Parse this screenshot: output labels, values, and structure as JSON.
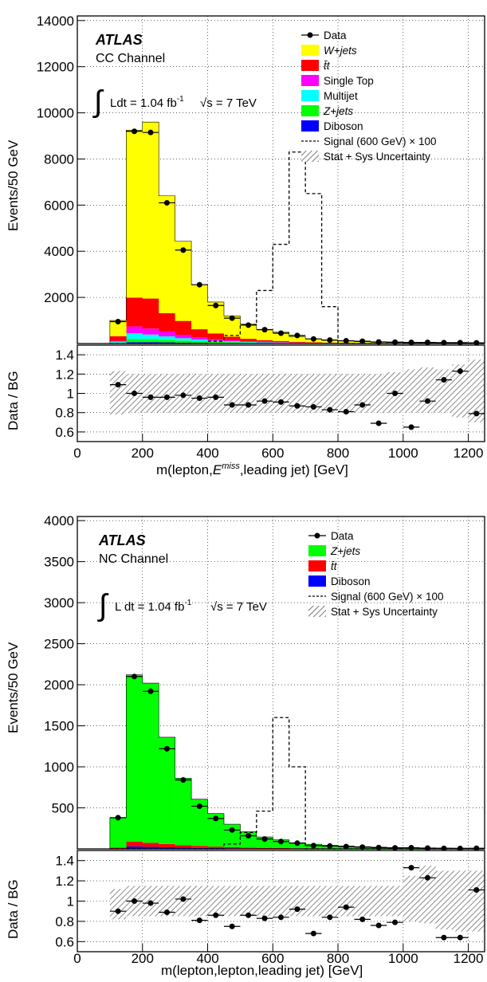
{
  "chart_data": [
    {
      "type": "bar",
      "panel": "top",
      "experiment": "ATLAS",
      "channel": "CC Channel",
      "lumi_prefix": "Ldt = 1.04 fb",
      "lumi_exp": "-1",
      "energy": "√s = 7 TeV",
      "ylabel": "Events/50 GeV",
      "ratio_ylabel": "Data / BG",
      "xlabel_pre": "m(lepton,",
      "xlabel_var": "E",
      "xlabel_sup": "miss",
      "xlabel_post": ",leading jet) [GeV]",
      "xlim": [
        0,
        1250
      ],
      "ylim": [
        0,
        14200
      ],
      "ratio_ylim": [
        0.5,
        1.5
      ],
      "x_ticks": [
        "0",
        "200",
        "400",
        "600",
        "800",
        "1000",
        "1200"
      ],
      "y_ticks": [
        "2000",
        "4000",
        "6000",
        "8000",
        "10000",
        "12000",
        "14000"
      ],
      "ratio_ticks": [
        "0.6",
        "0.8",
        "1",
        "1.2",
        "1.4"
      ],
      "grid": true,
      "legend_position": "top-right",
      "legend": [
        {
          "label": "Data",
          "style": "marker"
        },
        {
          "label": "W+jets",
          "style": "fill",
          "color": "#ffff00"
        },
        {
          "label": "t̄t",
          "style": "fill",
          "color": "#ff0000"
        },
        {
          "label": "Single Top",
          "style": "fill",
          "color": "#ff00ff"
        },
        {
          "label": "Multijet",
          "style": "fill",
          "color": "#00ffff"
        },
        {
          "label": "Z+jets",
          "style": "fill",
          "color": "#00ff00"
        },
        {
          "label": "Diboson",
          "style": "fill",
          "color": "#0000ff"
        },
        {
          "label": "Signal (600 GeV) × 100",
          "style": "dashed"
        },
        {
          "label": "Stat + Sys Uncertainty",
          "style": "hatch"
        }
      ],
      "bin_edges": [
        100,
        150,
        200,
        250,
        300,
        350,
        400,
        450,
        500,
        550,
        600,
        650,
        700,
        750,
        800,
        850,
        900,
        950,
        1000,
        1050,
        1100,
        1150,
        1200,
        1250
      ],
      "stack": [
        {
          "name": "Diboson",
          "color": "#0000ff",
          "values": [
            10,
            60,
            60,
            50,
            40,
            30,
            20,
            15,
            10,
            8,
            6,
            5,
            4,
            3,
            3,
            2,
            2,
            2,
            1,
            1,
            1,
            1,
            1
          ]
        },
        {
          "name": "Z+jets",
          "color": "#00ff00",
          "values": [
            30,
            130,
            130,
            110,
            90,
            70,
            50,
            40,
            30,
            25,
            20,
            15,
            10,
            8,
            6,
            5,
            4,
            3,
            3,
            2,
            2,
            2,
            2
          ]
        },
        {
          "name": "Multijet",
          "color": "#00ffff",
          "values": [
            40,
            250,
            200,
            150,
            100,
            70,
            50,
            40,
            30,
            20,
            15,
            10,
            8,
            6,
            5,
            4,
            3,
            3,
            2,
            2,
            2,
            2,
            2
          ]
        },
        {
          "name": "Single Top",
          "color": "#ff00ff",
          "values": [
            40,
            300,
            260,
            210,
            150,
            100,
            70,
            50,
            35,
            25,
            20,
            15,
            10,
            8,
            6,
            5,
            4,
            3,
            2,
            2,
            2,
            2,
            2
          ]
        },
        {
          "name": "tt",
          "color": "#ff0000",
          "values": [
            200,
            1250,
            1300,
            800,
            600,
            350,
            250,
            150,
            100,
            70,
            50,
            30,
            20,
            15,
            10,
            8,
            6,
            5,
            4,
            3,
            3,
            2,
            2
          ]
        },
        {
          "name": "W+jets",
          "color": "#ffff00",
          "values": [
            680,
            7260,
            7650,
            5080,
            3460,
            1930,
            1360,
            900,
            640,
            470,
            380,
            230,
            150,
            100,
            80,
            60,
            40,
            30,
            25,
            20,
            15,
            10,
            10
          ]
        }
      ],
      "signal": [
        0,
        0,
        0,
        0,
        0,
        0,
        100,
        350,
        800,
        2300,
        4300,
        8300,
        6500,
        1600,
        0,
        0,
        0,
        0,
        0,
        0,
        0,
        0,
        0,
        0
      ],
      "data_points": [
        {
          "x": 125,
          "y": 950
        },
        {
          "x": 175,
          "y": 9200
        },
        {
          "x": 225,
          "y": 9150
        },
        {
          "x": 275,
          "y": 6100
        },
        {
          "x": 325,
          "y": 4050
        },
        {
          "x": 375,
          "y": 2550
        },
        {
          "x": 425,
          "y": 1650
        },
        {
          "x": 475,
          "y": 1100
        },
        {
          "x": 525,
          "y": 800
        },
        {
          "x": 575,
          "y": 600
        },
        {
          "x": 625,
          "y": 450
        },
        {
          "x": 675,
          "y": 350
        },
        {
          "x": 725,
          "y": 200
        },
        {
          "x": 775,
          "y": 150
        },
        {
          "x": 825,
          "y": 120
        },
        {
          "x": 875,
          "y": 100
        },
        {
          "x": 925,
          "y": 70
        },
        {
          "x": 975,
          "y": 60
        },
        {
          "x": 1025,
          "y": 50
        },
        {
          "x": 1075,
          "y": 50
        },
        {
          "x": 1125,
          "y": 40
        },
        {
          "x": 1175,
          "y": 40
        },
        {
          "x": 1225,
          "y": 30
        }
      ],
      "ratio_points": [
        {
          "x": 125,
          "y": 1.09
        },
        {
          "x": 175,
          "y": 1.0
        },
        {
          "x": 225,
          "y": 0.96
        },
        {
          "x": 275,
          "y": 0.96
        },
        {
          "x": 325,
          "y": 0.98
        },
        {
          "x": 375,
          "y": 0.95
        },
        {
          "x": 425,
          "y": 0.96
        },
        {
          "x": 475,
          "y": 0.88
        },
        {
          "x": 525,
          "y": 0.88
        },
        {
          "x": 575,
          "y": 0.92
        },
        {
          "x": 625,
          "y": 0.91
        },
        {
          "x": 675,
          "y": 0.87
        },
        {
          "x": 725,
          "y": 0.86
        },
        {
          "x": 775,
          "y": 0.83
        },
        {
          "x": 825,
          "y": 0.81
        },
        {
          "x": 875,
          "y": 0.88
        },
        {
          "x": 925,
          "y": 0.69
        },
        {
          "x": 975,
          "y": 1.0
        },
        {
          "x": 1025,
          "y": 0.65
        },
        {
          "x": 1075,
          "y": 0.92
        },
        {
          "x": 1125,
          "y": 1.14
        },
        {
          "x": 1175,
          "y": 1.23
        },
        {
          "x": 1225,
          "y": 0.79
        }
      ],
      "uncertainty": {
        "x_range": [
          100,
          1250
        ],
        "lower": [
          0.78,
          0.8,
          0.8,
          0.8,
          0.8,
          0.8,
          0.8,
          0.8,
          0.8,
          0.8,
          0.8,
          0.8,
          0.8,
          0.8,
          0.8,
          0.8,
          0.8,
          0.8,
          0.8,
          0.8,
          0.8,
          0.75,
          0.7
        ],
        "upper": [
          1.23,
          1.2,
          1.2,
          1.2,
          1.2,
          1.2,
          1.2,
          1.2,
          1.2,
          1.2,
          1.2,
          1.2,
          1.2,
          1.2,
          1.2,
          1.2,
          1.2,
          1.22,
          1.25,
          1.27,
          1.25,
          1.3,
          1.35
        ]
      }
    },
    {
      "type": "bar",
      "panel": "bottom",
      "experiment": "ATLAS",
      "channel": "NC Channel",
      "lumi_prefix": "L dt = 1.04 fb",
      "lumi_exp": "-1",
      "energy": "√s = 7 TeV",
      "ylabel": "Events/50 GeV",
      "ratio_ylabel": "Data / BG",
      "xlabel": "m(lepton,lepton,leading jet) [GeV]",
      "xlim": [
        0,
        1250
      ],
      "ylim": [
        0,
        4050
      ],
      "ratio_ylim": [
        0.5,
        1.5
      ],
      "x_ticks": [
        "0",
        "200",
        "400",
        "600",
        "800",
        "1000",
        "1200"
      ],
      "y_ticks": [
        "500",
        "1000",
        "1500",
        "2000",
        "2500",
        "3000",
        "3500",
        "4000"
      ],
      "ratio_ticks": [
        "0.6",
        "0.8",
        "1",
        "1.2",
        "1.4"
      ],
      "grid": true,
      "legend_position": "top-right",
      "legend": [
        {
          "label": "Data",
          "style": "marker"
        },
        {
          "label": "Z+jets",
          "style": "fill",
          "color": "#00ff00"
        },
        {
          "label": "t̄t",
          "style": "fill",
          "color": "#ff0000"
        },
        {
          "label": "Diboson",
          "style": "fill",
          "color": "#0000ff"
        },
        {
          "label": "Signal (600 GeV) × 100",
          "style": "dashed"
        },
        {
          "label": "Stat + Sys Uncertainty",
          "style": "hatch"
        }
      ],
      "bin_edges": [
        100,
        150,
        200,
        250,
        300,
        350,
        400,
        450,
        500,
        550,
        600,
        650,
        700,
        750,
        800,
        850,
        900,
        950,
        1000,
        1050,
        1100,
        1150,
        1200,
        1250
      ],
      "stack": [
        {
          "name": "Diboson",
          "color": "#0000ff",
          "values": [
            5,
            30,
            25,
            20,
            15,
            12,
            10,
            8,
            6,
            5,
            4,
            3,
            3,
            2,
            2,
            1,
            1,
            1,
            1,
            1,
            1,
            1,
            1
          ]
        },
        {
          "name": "tt",
          "color": "#ff0000",
          "values": [
            10,
            60,
            50,
            40,
            30,
            25,
            18,
            14,
            10,
            8,
            6,
            5,
            4,
            3,
            3,
            2,
            2,
            1,
            1,
            1,
            1,
            1,
            1
          ]
        },
        {
          "name": "Z+jets",
          "color": "#00ff00",
          "values": [
            365,
            2030,
            1945,
            1300,
            815,
            568,
            402,
            278,
            194,
            132,
            100,
            67,
            50,
            38,
            30,
            24,
            18,
            15,
            12,
            10,
            8,
            7,
            6
          ]
        }
      ],
      "signal": [
        0,
        0,
        0,
        0,
        0,
        0,
        0,
        60,
        200,
        460,
        1600,
        1000,
        0,
        0,
        0,
        0,
        0,
        0,
        0,
        0,
        0,
        0,
        0,
        0
      ],
      "data_points": [
        {
          "x": 125,
          "y": 380
        },
        {
          "x": 175,
          "y": 2100
        },
        {
          "x": 225,
          "y": 1920
        },
        {
          "x": 275,
          "y": 1220
        },
        {
          "x": 325,
          "y": 840
        },
        {
          "x": 375,
          "y": 520
        },
        {
          "x": 425,
          "y": 370
        },
        {
          "x": 475,
          "y": 230
        },
        {
          "x": 525,
          "y": 160
        },
        {
          "x": 575,
          "y": 120
        },
        {
          "x": 625,
          "y": 90
        },
        {
          "x": 675,
          "y": 70
        },
        {
          "x": 725,
          "y": 40
        },
        {
          "x": 775,
          "y": 35
        },
        {
          "x": 825,
          "y": 28
        },
        {
          "x": 875,
          "y": 22
        },
        {
          "x": 925,
          "y": 16
        },
        {
          "x": 975,
          "y": 12
        },
        {
          "x": 1025,
          "y": 14
        },
        {
          "x": 1075,
          "y": 10
        },
        {
          "x": 1125,
          "y": 6
        },
        {
          "x": 1175,
          "y": 5
        },
        {
          "x": 1225,
          "y": 7
        }
      ],
      "ratio_points": [
        {
          "x": 125,
          "y": 0.9
        },
        {
          "x": 175,
          "y": 1.0
        },
        {
          "x": 225,
          "y": 0.98
        },
        {
          "x": 275,
          "y": 0.89
        },
        {
          "x": 325,
          "y": 1.02
        },
        {
          "x": 375,
          "y": 0.81
        },
        {
          "x": 425,
          "y": 0.86
        },
        {
          "x": 475,
          "y": 0.75
        },
        {
          "x": 525,
          "y": 0.86
        },
        {
          "x": 575,
          "y": 0.83
        },
        {
          "x": 625,
          "y": 0.84
        },
        {
          "x": 675,
          "y": 0.92
        },
        {
          "x": 725,
          "y": 0.68
        },
        {
          "x": 775,
          "y": 0.84
        },
        {
          "x": 825,
          "y": 0.94
        },
        {
          "x": 875,
          "y": 0.82
        },
        {
          "x": 925,
          "y": 0.76
        },
        {
          "x": 975,
          "y": 0.79
        },
        {
          "x": 1025,
          "y": 1.33
        },
        {
          "x": 1075,
          "y": 1.23
        },
        {
          "x": 1125,
          "y": 0.64
        },
        {
          "x": 1175,
          "y": 0.64
        },
        {
          "x": 1225,
          "y": 1.11
        }
      ],
      "uncertainty": {
        "x_range": [
          100,
          1250
        ],
        "lower": [
          0.82,
          0.85,
          0.85,
          0.85,
          0.85,
          0.85,
          0.85,
          0.85,
          0.85,
          0.85,
          0.85,
          0.85,
          0.85,
          0.85,
          0.85,
          0.85,
          0.85,
          0.85,
          0.8,
          0.78,
          0.72,
          0.7,
          0.7
        ],
        "upper": [
          1.12,
          1.15,
          1.15,
          1.15,
          1.15,
          1.15,
          1.15,
          1.15,
          1.15,
          1.15,
          1.15,
          1.15,
          1.15,
          1.15,
          1.15,
          1.15,
          1.15,
          1.15,
          1.25,
          1.35,
          1.3,
          1.3,
          1.3
        ]
      }
    }
  ]
}
